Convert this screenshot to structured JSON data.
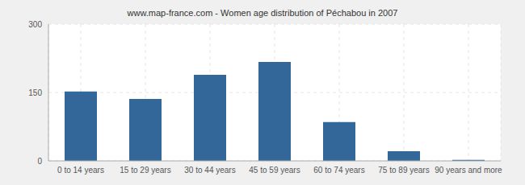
{
  "chart_data": {
    "type": "bar",
    "title": "www.map-france.com - Women age distribution of Péchabou in 2007",
    "categories": [
      "0 to 14 years",
      "15 to 29 years",
      "30 to 44 years",
      "45 to 59 years",
      "60 to 74 years",
      "75 to 89 years",
      "90 years and more"
    ],
    "values": [
      152,
      136,
      189,
      217,
      85,
      21,
      2
    ],
    "color": "#336699",
    "ylim": [
      0,
      300
    ],
    "yticks": [
      0,
      150,
      300
    ],
    "grid": true
  }
}
